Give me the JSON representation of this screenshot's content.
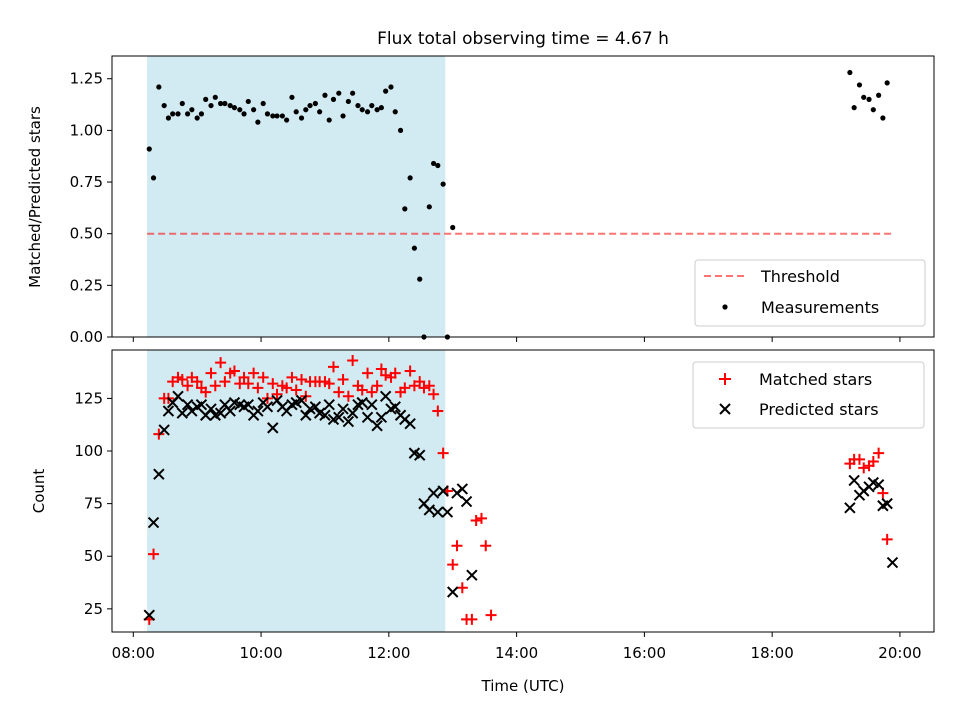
{
  "figure": {
    "title": "Flux total observing time = 4.67 h",
    "xlabel": "Time (UTC)",
    "x_tick_labels": [
      "08:00",
      "10:00",
      "12:00",
      "14:00",
      "16:00",
      "18:00",
      "20:00"
    ]
  },
  "colors": {
    "shade": "#add8e6",
    "threshold": "#ff0000",
    "measurements": "#000000",
    "matched": "#ff0000",
    "predicted": "#000000"
  },
  "chart_data": [
    {
      "type": "scatter",
      "panel": "top",
      "title": "Flux total observing time = 4.67 h",
      "xlabel": "",
      "ylabel": "Matched/Predicted stars",
      "xlim": [
        "07:40",
        "20:32"
      ],
      "ylim": [
        0,
        1.36
      ],
      "x_ticks": [
        "08:00",
        "10:00",
        "12:00",
        "14:00",
        "16:00",
        "18:00",
        "20:00"
      ],
      "y_ticks": [
        0.0,
        0.25,
        0.5,
        0.75,
        1.0,
        1.25
      ],
      "y_tick_labels": [
        "0.00",
        "0.25",
        "0.50",
        "0.75",
        "1.00",
        "1.25"
      ],
      "shaded_span": [
        "08:13",
        "12:53"
      ],
      "threshold": {
        "name": "Threshold",
        "y": 0.5,
        "x_range": [
          "08:13",
          "19:55"
        ],
        "style": "dashed"
      },
      "legend": {
        "placement": "lower-right",
        "entries": [
          "Threshold",
          "Measurements"
        ]
      },
      "series": [
        {
          "name": "Measurements",
          "marker": "dot",
          "x": [
            "08:15",
            "08:19",
            "08:24",
            "08:29",
            "08:33",
            "08:37",
            "08:42",
            "08:46",
            "08:51",
            "08:55",
            "09:00",
            "09:04",
            "09:08",
            "09:13",
            "09:17",
            "09:22",
            "09:26",
            "09:31",
            "09:35",
            "09:40",
            "09:44",
            "09:48",
            "09:53",
            "09:57",
            "10:02",
            "10:06",
            "10:11",
            "10:15",
            "10:20",
            "10:24",
            "10:29",
            "10:33",
            "10:38",
            "10:42",
            "10:46",
            "10:51",
            "10:55",
            "11:00",
            "11:04",
            "11:08",
            "11:13",
            "11:17",
            "11:22",
            "11:26",
            "11:31",
            "11:35",
            "11:40",
            "11:44",
            "11:49",
            "11:53",
            "11:57",
            "12:02",
            "12:06",
            "12:11",
            "12:15",
            "12:20",
            "12:24",
            "12:29",
            "12:33",
            "12:38",
            "12:42",
            "12:46",
            "12:51",
            "12:55",
            "13:00",
            "13:04",
            "13:09",
            "13:13",
            "13:18",
            "13:22",
            "13:27",
            "13:31",
            "13:36",
            "19:13",
            "19:17",
            "19:22",
            "19:26",
            "19:31",
            "19:35",
            "19:40",
            "19:44",
            "19:48",
            "19:53"
          ],
          "y": [
            0.91,
            0.77,
            1.21,
            1.12,
            1.06,
            1.08,
            1.08,
            1.13,
            1.08,
            1.1,
            1.06,
            1.08,
            1.15,
            1.12,
            1.16,
            1.13,
            1.13,
            1.12,
            1.11,
            1.1,
            1.08,
            1.14,
            1.1,
            1.04,
            1.13,
            1.08,
            1.07,
            1.07,
            1.07,
            1.05,
            1.16,
            1.09,
            1.06,
            1.1,
            1.12,
            1.13,
            1.09,
            1.17,
            1.05,
            1.15,
            1.18,
            1.07,
            1.14,
            1.18,
            1.12,
            1.1,
            1.09,
            1.12,
            1.1,
            1.11,
            1.19,
            1.21,
            1.09,
            1.0,
            0.62,
            0.77,
            0.43,
            0.28,
            0.0,
            0.63,
            0.84,
            0.83,
            0.74,
            0.0,
            0.53,
            null,
            null,
            null,
            null,
            null,
            null,
            null,
            null,
            1.28,
            1.11,
            1.22,
            1.16,
            1.15,
            1.1,
            1.17,
            1.06,
            1.23,
            null
          ]
        }
      ]
    },
    {
      "type": "scatter",
      "panel": "bottom",
      "xlabel": "Time (UTC)",
      "ylabel": "Count",
      "xlim": [
        "07:40",
        "20:32"
      ],
      "ylim": [
        14,
        148
      ],
      "x_ticks": [
        "08:00",
        "10:00",
        "12:00",
        "14:00",
        "16:00",
        "18:00",
        "20:00"
      ],
      "y_ticks": [
        25,
        50,
        75,
        100,
        125
      ],
      "shaded_span": [
        "08:13",
        "12:53"
      ],
      "legend": {
        "placement": "top-right",
        "entries": [
          "Matched stars",
          "Predicted stars"
        ]
      },
      "series": [
        {
          "name": "Matched stars",
          "marker": "plus",
          "x": [
            "08:15",
            "08:19",
            "08:24",
            "08:29",
            "08:33",
            "08:37",
            "08:42",
            "08:46",
            "08:51",
            "08:55",
            "09:00",
            "09:04",
            "09:08",
            "09:13",
            "09:17",
            "09:22",
            "09:26",
            "09:31",
            "09:35",
            "09:40",
            "09:44",
            "09:48",
            "09:53",
            "09:57",
            "10:02",
            "10:06",
            "10:11",
            "10:15",
            "10:20",
            "10:24",
            "10:29",
            "10:33",
            "10:38",
            "10:42",
            "10:46",
            "10:51",
            "10:55",
            "11:00",
            "11:04",
            "11:08",
            "11:13",
            "11:17",
            "11:22",
            "11:26",
            "11:31",
            "11:35",
            "11:40",
            "11:44",
            "11:49",
            "11:53",
            "11:57",
            "12:02",
            "12:06",
            "12:11",
            "12:15",
            "12:20",
            "12:24",
            "12:29",
            "12:33",
            "12:38",
            "12:42",
            "12:46",
            "12:51",
            "12:55",
            "13:00",
            "13:04",
            "13:09",
            "13:13",
            "13:18",
            "13:22",
            "13:27",
            "13:31",
            "13:36",
            "19:13",
            "19:17",
            "19:22",
            "19:26",
            "19:31",
            "19:35",
            "19:40",
            "19:44",
            "19:48",
            "19:53"
          ],
          "y": [
            20,
            51,
            108,
            125,
            125,
            133,
            135,
            134,
            131,
            135,
            133,
            130,
            128,
            137,
            131,
            142,
            133,
            137,
            138,
            132,
            135,
            132,
            137,
            130,
            135,
            125,
            132,
            127,
            131,
            130,
            135,
            129,
            134,
            126,
            133,
            133,
            133,
            133,
            132,
            140,
            128,
            134,
            126,
            143,
            131,
            129,
            137,
            128,
            131,
            139,
            136,
            135,
            137,
            128,
            130,
            138,
            131,
            133,
            130,
            131,
            127,
            119,
            99,
            81,
            46,
            55,
            35,
            20,
            20,
            67,
            68,
            55,
            22,
            94,
            96,
            96,
            92,
            93,
            95,
            99,
            80,
            58,
            null
          ]
        },
        {
          "name": "Predicted stars",
          "marker": "x",
          "x": [
            "08:15",
            "08:19",
            "08:24",
            "08:29",
            "08:33",
            "08:37",
            "08:42",
            "08:46",
            "08:51",
            "08:55",
            "09:00",
            "09:04",
            "09:08",
            "09:13",
            "09:17",
            "09:22",
            "09:26",
            "09:31",
            "09:35",
            "09:40",
            "09:44",
            "09:48",
            "09:53",
            "09:57",
            "10:02",
            "10:06",
            "10:11",
            "10:15",
            "10:20",
            "10:24",
            "10:29",
            "10:33",
            "10:38",
            "10:42",
            "10:46",
            "10:51",
            "10:55",
            "11:00",
            "11:04",
            "11:08",
            "11:13",
            "11:17",
            "11:22",
            "11:26",
            "11:31",
            "11:35",
            "11:40",
            "11:44",
            "11:49",
            "11:53",
            "11:57",
            "12:02",
            "12:06",
            "12:11",
            "12:15",
            "12:20",
            "12:24",
            "12:29",
            "12:33",
            "12:38",
            "12:42",
            "12:46",
            "12:51",
            "12:55",
            "13:00",
            "13:04",
            "13:09",
            "13:13",
            "13:18",
            "13:22",
            "13:27",
            "13:31",
            "13:36",
            "19:13",
            "19:17",
            "19:22",
            "19:26",
            "19:31",
            "19:35",
            "19:40",
            "19:44",
            "19:48",
            "19:53"
          ],
          "y": [
            22,
            66,
            89,
            110,
            119,
            123,
            126,
            118,
            122,
            119,
            121,
            122,
            117,
            120,
            117,
            118,
            122,
            119,
            123,
            122,
            121,
            122,
            117,
            119,
            123,
            121,
            111,
            124,
            121,
            119,
            122,
            123,
            124,
            117,
            120,
            121,
            118,
            117,
            122,
            115,
            116,
            120,
            114,
            118,
            122,
            123,
            116,
            122,
            112,
            116,
            126,
            120,
            121,
            117,
            115,
            113,
            99,
            98,
            75,
            72,
            80,
            71,
            81,
            71,
            33,
            80,
            82,
            76,
            41,
            null,
            null,
            null,
            null,
            73,
            86,
            79,
            81,
            83,
            85,
            84,
            74,
            75,
            47
          ]
        }
      ]
    }
  ]
}
